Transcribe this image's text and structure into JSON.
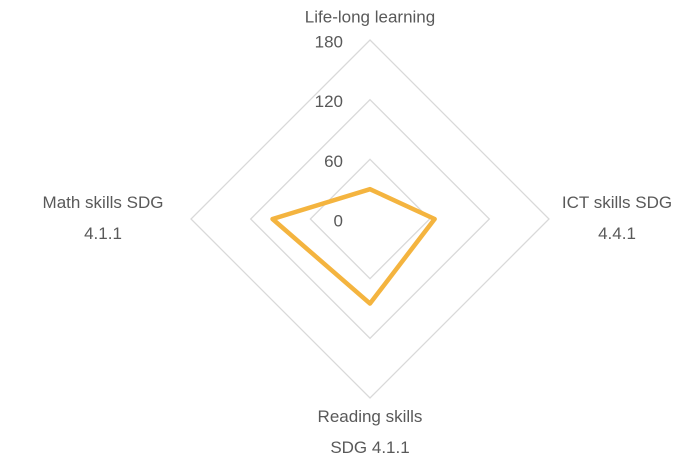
{
  "chart_data": {
    "type": "radar",
    "categories": [
      [
        "Life-long learning"
      ],
      [
        "ICT skills SDG",
        "4.4.1"
      ],
      [
        "Reading skills",
        "SDG 4.1.1"
      ],
      [
        "Math skills SDG",
        "4.1.1"
      ]
    ],
    "series": [
      {
        "color": "#f4b43f",
        "values": [
          30,
          65,
          85,
          98
        ]
      }
    ],
    "rlim": [
      0,
      180
    ],
    "rticks": [
      0,
      60,
      120,
      180
    ],
    "grid": true
  }
}
